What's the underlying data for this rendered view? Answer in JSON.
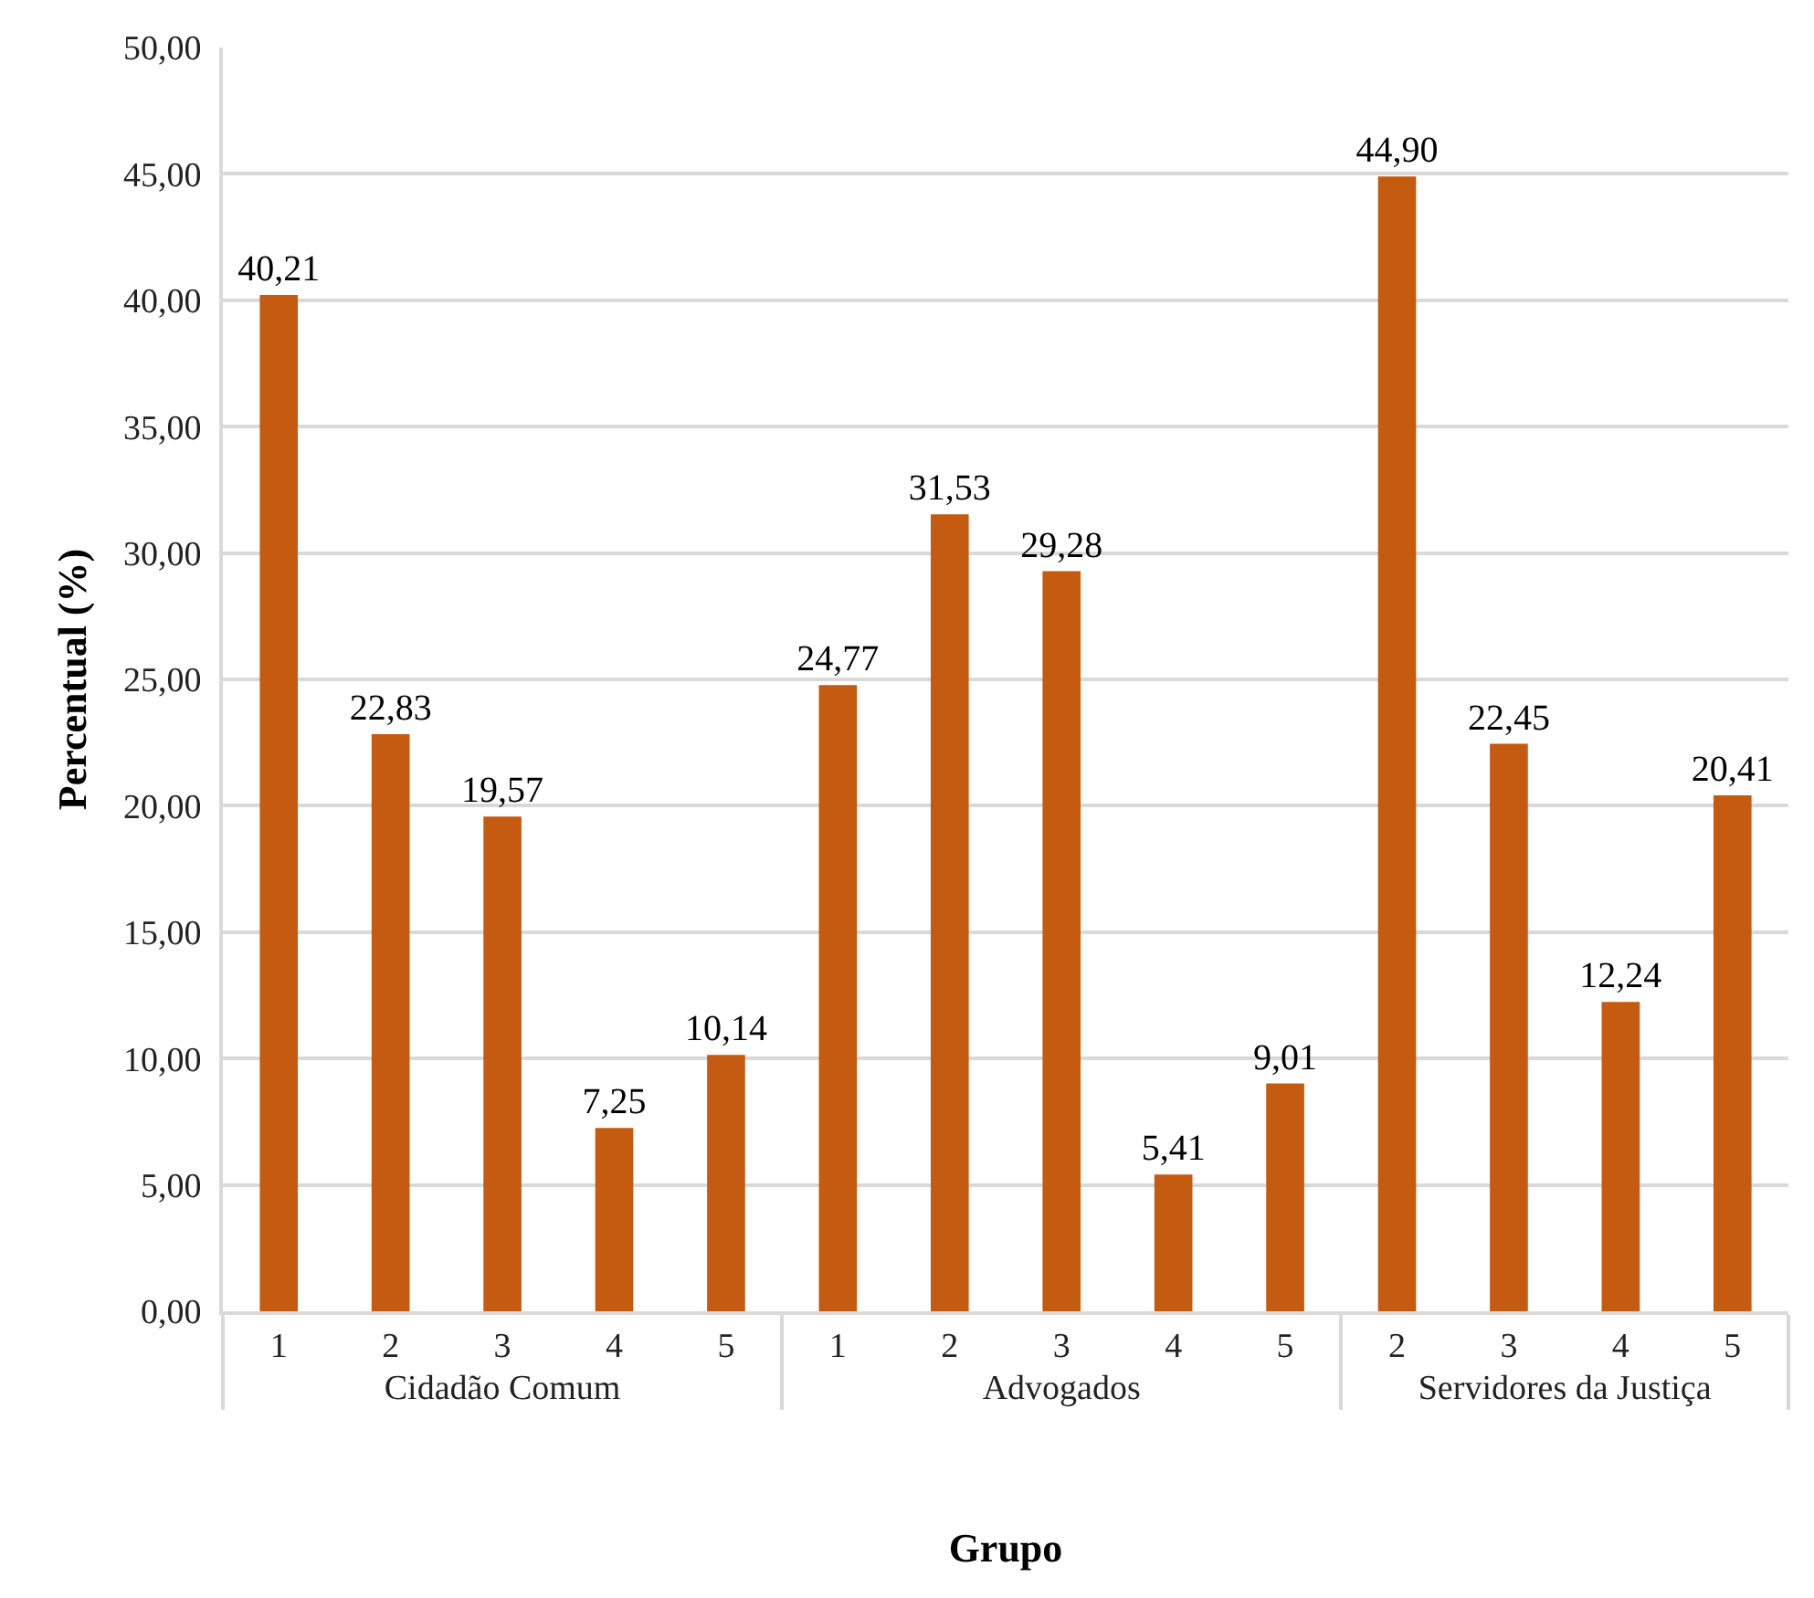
{
  "chart_data": {
    "type": "bar",
    "xlabel": "Grupo",
    "ylabel": "Percentual (%)",
    "categories": [
      "1",
      "2",
      "3",
      "4",
      "5",
      "1",
      "2",
      "3",
      "4",
      "5",
      "2",
      "3",
      "4",
      "5"
    ],
    "series": [
      {
        "name": "Cidadão Comum",
        "color": "#c55a11",
        "values": [
          40.21,
          22.83,
          19.57,
          7.25,
          10.14,
          null,
          null,
          null,
          null,
          null,
          null,
          null,
          null,
          null
        ],
        "value_labels": [
          "40,21",
          "22,83",
          "19,57",
          "7,25",
          "10,14",
          null,
          null,
          null,
          null,
          null,
          null,
          null,
          null,
          null
        ]
      },
      {
        "name": "Advogados",
        "color": "#c55a11",
        "values": [
          null,
          null,
          null,
          null,
          null,
          24.77,
          31.53,
          29.28,
          5.41,
          9.01,
          null,
          null,
          null,
          null
        ],
        "value_labels": [
          null,
          null,
          null,
          null,
          null,
          "24,77",
          "31,53",
          "29,28",
          "5,41",
          "9,01",
          null,
          null,
          null,
          null
        ]
      },
      {
        "name": "Servidores da Justiça",
        "color": "#c55a11",
        "values": [
          null,
          null,
          null,
          null,
          null,
          null,
          null,
          null,
          null,
          null,
          44.9,
          22.45,
          12.24,
          20.41
        ],
        "value_labels": [
          null,
          null,
          null,
          null,
          null,
          null,
          null,
          null,
          null,
          null,
          "44,90",
          "22,45",
          "12,24",
          "20,41"
        ]
      }
    ],
    "ylim": [
      0,
      50
    ],
    "yticks": [
      {
        "value": 0,
        "label": "0,00"
      },
      {
        "value": 5,
        "label": "5,00"
      },
      {
        "value": 10,
        "label": "10,00"
      },
      {
        "value": 15,
        "label": "15,00"
      },
      {
        "value": 20,
        "label": "20,00"
      },
      {
        "value": 25,
        "label": "25,00"
      },
      {
        "value": 30,
        "label": "30,00"
      },
      {
        "value": 35,
        "label": "35,00"
      },
      {
        "value": 40,
        "label": "40,00"
      },
      {
        "value": 45,
        "label": "45,00"
      },
      {
        "value": 50,
        "label": "50,00"
      }
    ],
    "grid": "y",
    "legend": false
  }
}
